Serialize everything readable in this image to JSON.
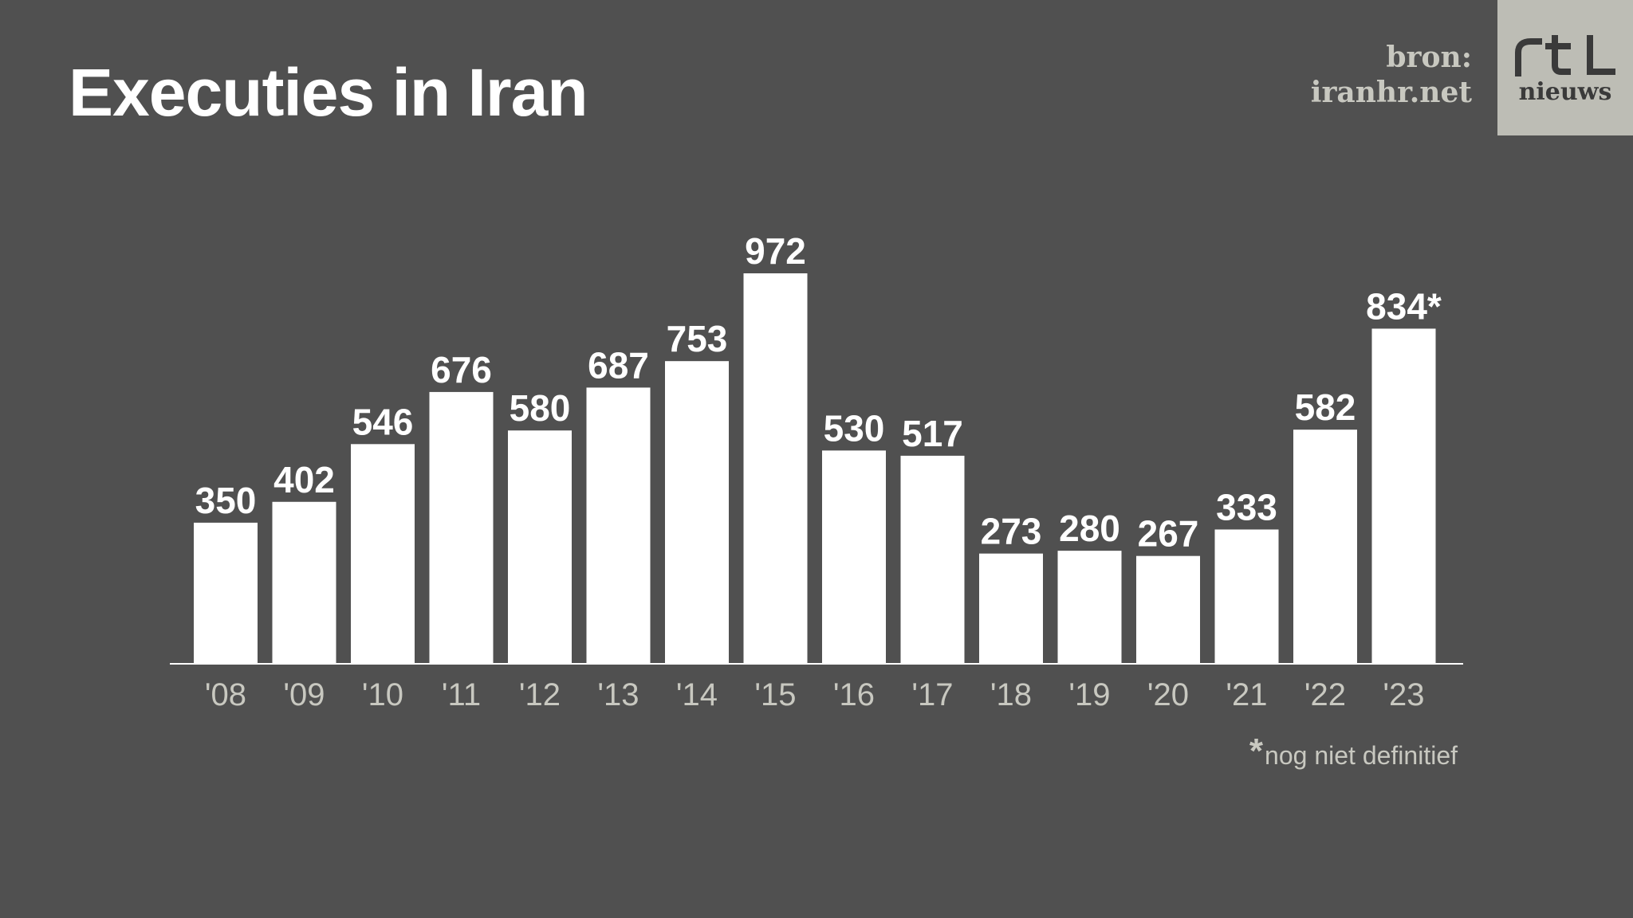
{
  "chart_data": {
    "type": "bar",
    "title": "Executies in Iran",
    "categories": [
      "'08",
      "'09",
      "'10",
      "'11",
      "'12",
      "'13",
      "'14",
      "'15",
      "'16",
      "'17",
      "'18",
      "'19",
      "'20",
      "'21",
      "'22",
      "'23"
    ],
    "values": [
      350,
      402,
      546,
      676,
      580,
      687,
      753,
      972,
      530,
      517,
      273,
      280,
      267,
      333,
      582,
      834
    ],
    "data_labels": [
      "350",
      "402",
      "546",
      "676",
      "580",
      "687",
      "753",
      "972",
      "530",
      "517",
      "273",
      "280",
      "267",
      "333",
      "582",
      "834*"
    ],
    "xlabel": "",
    "ylabel": "",
    "ylim": [
      0,
      972
    ],
    "grid": false,
    "legend": "none"
  },
  "source": {
    "line1": "bron:",
    "line2": "iranhr.net"
  },
  "logo": {
    "mark": "rtl",
    "word": "nieuws"
  },
  "footnote": {
    "marker": "*",
    "text": "nog niet definitief"
  },
  "colors": {
    "background": "#505050",
    "bar": "#ffffff",
    "value_label": "#ffffff",
    "tick_label": "#c8c8c0",
    "axis": "#ffffff"
  }
}
